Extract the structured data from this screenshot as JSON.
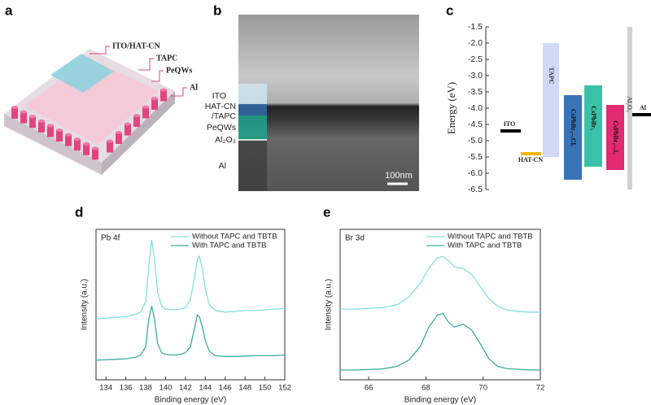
{
  "panel_labels": [
    "a",
    "b",
    "c",
    "d",
    "e"
  ],
  "schematic": {
    "labels": [
      "ITO/HAT-CN",
      "TAPC",
      "PeQWs",
      "Al"
    ]
  },
  "micrograph": {
    "labels": [
      "ITO",
      "HAT-CN",
      "/TAPC",
      "PeQWs",
      "Al₂O₃",
      "Al"
    ],
    "scale_bar": "100nm"
  },
  "chart_data": [
    {
      "type": "energy_levels",
      "ylabel": "Energy (eV)",
      "ylim": [
        -6.5,
        -1.5
      ],
      "yticks": [
        -1.5,
        {
          "value": -2,
          "label": "-2.0"
        },
        -2.5,
        {
          "value": -3,
          "label": "-3.0"
        },
        -3.5,
        {
          "value": -4,
          "label": "-4.0"
        },
        -4.5,
        {
          "value": -5,
          "label": "-5.0"
        },
        -5.5,
        {
          "value": -6,
          "label": "-6.0"
        },
        -6.5
      ],
      "bands": [
        {
          "name": "TAPC",
          "color": "#c7cff2",
          "top": -2.0,
          "bottom": -5.5
        },
        {
          "name": "CsPbBr₃₋ₓClₓ",
          "color": "#2e6db5",
          "top": -3.6,
          "bottom": -6.2
        },
        {
          "name": "CsPbBr₃",
          "color": "#2fbfa3",
          "top": -3.3,
          "bottom": -5.8
        },
        {
          "name": "CsPbBr₃₋ₓIₓ",
          "color": "#e0206a",
          "top": -3.9,
          "bottom": -5.9
        },
        {
          "name": "Al₂O₃",
          "color": "#cfcfcf",
          "top": -1.5,
          "bottom": -6.5
        }
      ],
      "levels": [
        {
          "name": "ITO",
          "color": "#000000",
          "value": -4.7
        },
        {
          "name": "HAT-CN",
          "color": "#f2b80f",
          "value": -5.4
        },
        {
          "name": "Al",
          "color": "#000000",
          "value": -4.2
        }
      ]
    },
    {
      "type": "line",
      "annotation": "Pb 4f",
      "xlabel": "Binding energy (eV)",
      "ylabel": "Intensity (a.u.)",
      "xlim": [
        133,
        152
      ],
      "xticks": [
        134,
        136,
        138,
        140,
        142,
        144,
        146,
        148,
        150,
        152
      ],
      "ylim": [
        0,
        100
      ],
      "legend": "upper right",
      "x": [
        133,
        134,
        135,
        136,
        137,
        137.5,
        138,
        138.3,
        138.6,
        138.9,
        139.2,
        139.6,
        140,
        140.5,
        141,
        141.5,
        142,
        142.5,
        142.9,
        143.2,
        143.4,
        143.7,
        144,
        144.4,
        145,
        146,
        147,
        148,
        149,
        150,
        151,
        152
      ],
      "series": [
        {
          "name": "Without TAPC and TBTB",
          "color": "#7fe3dc",
          "values": [
            40.5,
            41,
            41.5,
            42,
            43.5,
            45,
            52,
            75,
            93,
            80,
            58,
            49,
            47,
            46.5,
            46.5,
            47,
            48,
            53,
            68,
            80,
            82,
            74,
            60,
            50,
            46,
            45,
            45.5,
            46,
            46,
            46.5,
            47,
            47.5
          ]
        },
        {
          "name": "With TAPC and TBTB",
          "color": "#3aae9a",
          "values": [
            13,
            13.3,
            13.6,
            14,
            15,
            16.5,
            22,
            40,
            49,
            40,
            24,
            18,
            17,
            16.5,
            16.5,
            17,
            18,
            22,
            34,
            43,
            42,
            35,
            26,
            19,
            16,
            15.5,
            15.5,
            15.8,
            16,
            16,
            16,
            16.5
          ]
        }
      ]
    },
    {
      "type": "line",
      "annotation": "Br 3d",
      "xlabel": "Binding energy (eV)",
      "ylabel": "Intensity (a.u.)",
      "xlim": [
        65,
        72
      ],
      "xticks": [
        66,
        68,
        70,
        72
      ],
      "ylim": [
        0,
        100
      ],
      "legend": "upper right",
      "x": [
        65,
        65.5,
        66,
        66.5,
        67,
        67.4,
        67.8,
        68.1,
        68.4,
        68.6,
        68.8,
        69,
        69.3,
        69.6,
        69.9,
        70.2,
        70.5,
        70.8,
        71.2,
        71.6,
        72
      ],
      "series": [
        {
          "name": "Without TAPC and TBTB",
          "color": "#7fe3dc",
          "values": [
            47,
            47,
            47.5,
            48,
            50,
            55,
            64,
            74,
            81,
            82,
            79,
            75,
            74,
            70,
            62,
            54,
            49,
            46.5,
            45.5,
            45,
            45
          ]
        },
        {
          "name": "With TAPC and TBTB",
          "color": "#3aae9a",
          "values": [
            6.5,
            6.5,
            6.8,
            7.3,
            9,
            13,
            22,
            35,
            43,
            44,
            38,
            35,
            37,
            33,
            24,
            14,
            9,
            7.5,
            7,
            6.6,
            6.5
          ]
        }
      ]
    }
  ]
}
